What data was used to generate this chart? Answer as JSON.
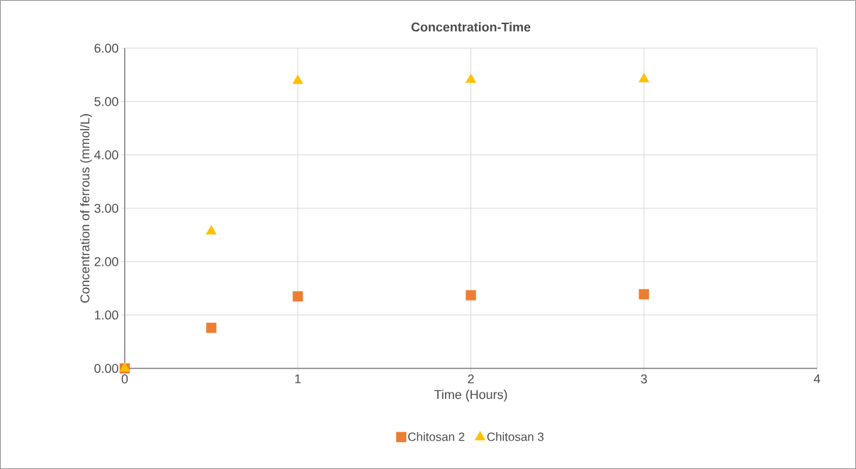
{
  "chart_data": {
    "type": "scatter",
    "title": "Concentration-Time",
    "xlabel": "Time (Hours)",
    "ylabel": "Concentration of ferrous (mmol/L)",
    "x": [
      0,
      0.5,
      1,
      2,
      3
    ],
    "series": [
      {
        "name": "Chitosan 2",
        "color": "#ed7d31",
        "marker": "square",
        "values": [
          0,
          0.76,
          1.35,
          1.37,
          1.39
        ]
      },
      {
        "name": "Chitosan 3",
        "color": "#ffc000",
        "marker": "triangle",
        "values": [
          0,
          2.57,
          5.39,
          5.41,
          5.42
        ]
      }
    ],
    "xlim": [
      0,
      4
    ],
    "ylim": [
      0,
      6
    ],
    "xticks": [
      0,
      1,
      2,
      3,
      4
    ],
    "yticks": [
      {
        "value": 0,
        "label": "0.00"
      },
      {
        "value": 1,
        "label": "1.00"
      },
      {
        "value": 2,
        "label": "2.00"
      },
      {
        "value": 3,
        "label": "3.00"
      },
      {
        "value": 4,
        "label": "4.00"
      },
      {
        "value": 5,
        "label": "5.00"
      },
      {
        "value": 6,
        "label": "6.00"
      }
    ],
    "grid": true,
    "legend": "bottom"
  }
}
